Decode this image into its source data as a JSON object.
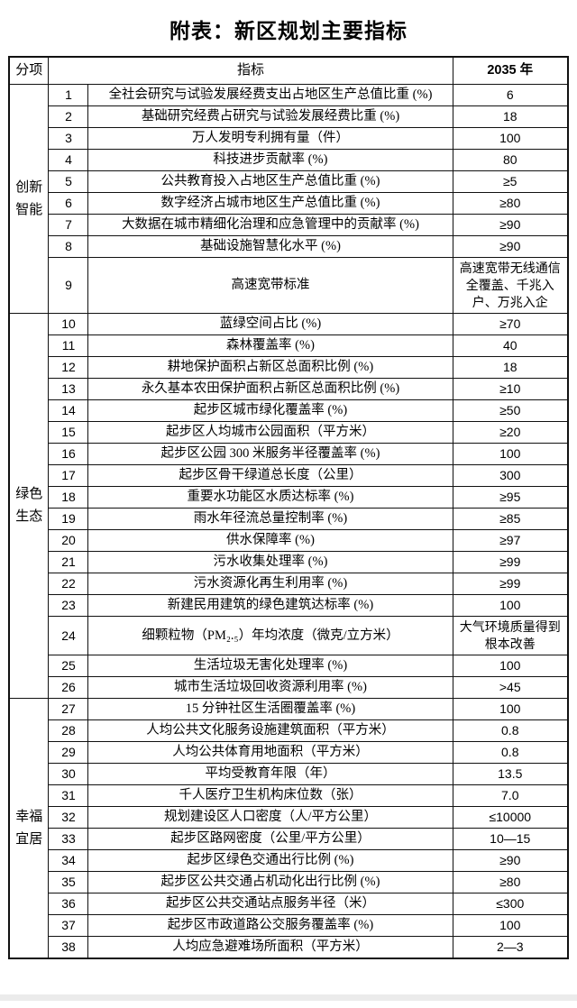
{
  "page": {
    "title": "附表：新区规划主要指标"
  },
  "colors": {
    "background": "#ffffff",
    "border": "#111111",
    "text": "#000000",
    "footer_band": "#ebebeb"
  },
  "table": {
    "headers": {
      "category": "分项",
      "indicator": "指标",
      "year": "2035 年"
    },
    "groups": [
      {
        "label": "创新智能",
        "rows": [
          {
            "num": "1",
            "indicator": "全社会研究与试验发展经费支出占地区生产总值比重 (%)",
            "value": "6"
          },
          {
            "num": "2",
            "indicator": "基础研究经费占研究与试验发展经费比重 (%)",
            "value": "18"
          },
          {
            "num": "3",
            "indicator": "万人发明专利拥有量（件）",
            "value": "100"
          },
          {
            "num": "4",
            "indicator": "科技进步贡献率 (%)",
            "value": "80"
          },
          {
            "num": "5",
            "indicator": "公共教育投入占地区生产总值比重 (%)",
            "value": "≥5"
          },
          {
            "num": "6",
            "indicator": "数字经济占城市地区生产总值比重 (%)",
            "value": "≥80"
          },
          {
            "num": "7",
            "indicator": "大数据在城市精细化治理和应急管理中的贡献率 (%)",
            "value": "≥90"
          },
          {
            "num": "8",
            "indicator": "基础设施智慧化水平 (%)",
            "value": "≥90"
          },
          {
            "num": "9",
            "indicator": "高速宽带标准",
            "value": "高速宽带无线通信全覆盖、千兆入户、万兆入企"
          }
        ]
      },
      {
        "label": "绿色生态",
        "rows": [
          {
            "num": "10",
            "indicator": "蓝绿空间占比 (%)",
            "value": "≥70"
          },
          {
            "num": "11",
            "indicator": "森林覆盖率 (%)",
            "value": "40"
          },
          {
            "num": "12",
            "indicator": "耕地保护面积占新区总面积比例 (%)",
            "value": "18"
          },
          {
            "num": "13",
            "indicator": "永久基本农田保护面积占新区总面积比例 (%)",
            "value": "≥10"
          },
          {
            "num": "14",
            "indicator": "起步区城市绿化覆盖率 (%)",
            "value": "≥50"
          },
          {
            "num": "15",
            "indicator": "起步区人均城市公园面积（平方米）",
            "value": "≥20"
          },
          {
            "num": "16",
            "indicator": "起步区公园 300 米服务半径覆盖率 (%)",
            "value": "100"
          },
          {
            "num": "17",
            "indicator": "起步区骨干绿道总长度（公里）",
            "value": "300"
          },
          {
            "num": "18",
            "indicator": "重要水功能区水质达标率 (%)",
            "value": "≥95"
          },
          {
            "num": "19",
            "indicator": "雨水年径流总量控制率 (%)",
            "value": "≥85"
          },
          {
            "num": "20",
            "indicator": "供水保障率 (%)",
            "value": "≥97"
          },
          {
            "num": "21",
            "indicator": "污水收集处理率 (%)",
            "value": "≥99"
          },
          {
            "num": "22",
            "indicator": "污水资源化再生利用率 (%)",
            "value": "≥99"
          },
          {
            "num": "23",
            "indicator": "新建民用建筑的绿色建筑达标率 (%)",
            "value": "100"
          },
          {
            "num": "24",
            "indicator": "细颗粒物（PM₂.₅）年均浓度（微克/立方米）",
            "value": "大气环境质量得到根本改善"
          },
          {
            "num": "25",
            "indicator": "生活垃圾无害化处理率 (%)",
            "value": "100"
          },
          {
            "num": "26",
            "indicator": "城市生活垃圾回收资源利用率 (%)",
            "value": ">45"
          }
        ]
      },
      {
        "label": "幸福宜居",
        "rows": [
          {
            "num": "27",
            "indicator": "15 分钟社区生活圈覆盖率 (%)",
            "value": "100"
          },
          {
            "num": "28",
            "indicator": "人均公共文化服务设施建筑面积（平方米）",
            "value": "0.8"
          },
          {
            "num": "29",
            "indicator": "人均公共体育用地面积（平方米）",
            "value": "0.8"
          },
          {
            "num": "30",
            "indicator": "平均受教育年限（年）",
            "value": "13.5"
          },
          {
            "num": "31",
            "indicator": "千人医疗卫生机构床位数（张）",
            "value": "7.0"
          },
          {
            "num": "32",
            "indicator": "规划建设区人口密度（人/平方公里）",
            "value": "≤10000"
          },
          {
            "num": "33",
            "indicator": "起步区路网密度（公里/平方公里）",
            "value": "10—15"
          },
          {
            "num": "34",
            "indicator": "起步区绿色交通出行比例 (%)",
            "value": "≥90"
          },
          {
            "num": "35",
            "indicator": "起步区公共交通占机动化出行比例 (%)",
            "value": "≥80"
          },
          {
            "num": "36",
            "indicator": "起步区公共交通站点服务半径（米）",
            "value": "≤300"
          },
          {
            "num": "37",
            "indicator": "起步区市政道路公交服务覆盖率 (%)",
            "value": "100"
          },
          {
            "num": "38",
            "indicator": "人均应急避难场所面积（平方米）",
            "value": "2—3"
          }
        ]
      }
    ]
  }
}
